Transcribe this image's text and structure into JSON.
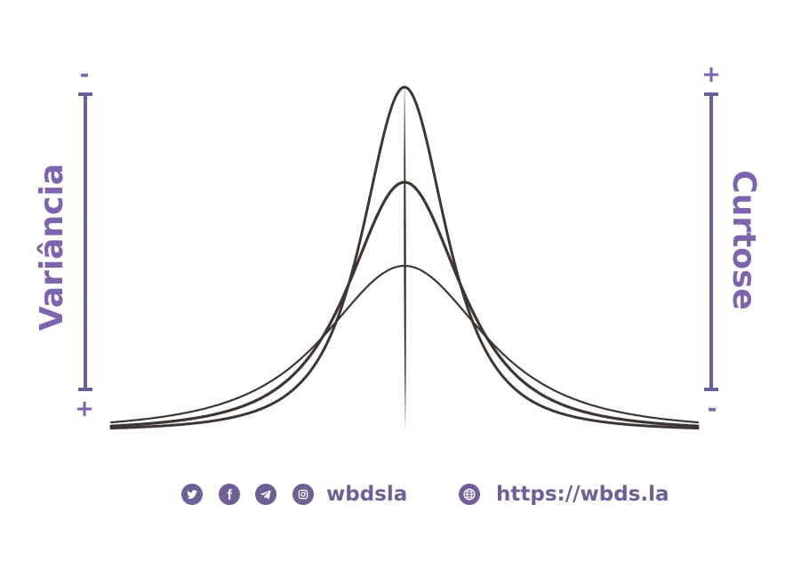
{
  "colors": {
    "accent": "#7e63ad",
    "bar": "#6d5e99",
    "curve": "#3e3633",
    "icon_bg": "#6f5f95"
  },
  "left_scale": {
    "label": "Variância",
    "top_sign": "-",
    "bottom_sign": "+"
  },
  "right_scale": {
    "label": "Curtose",
    "top_sign": "+",
    "bottom_sign": "-"
  },
  "curves": [
    {
      "peak": "highest",
      "role": "high kurtosis / low variance"
    },
    {
      "peak": "middle",
      "role": "medium"
    },
    {
      "peak": "lowest",
      "role": "low kurtosis / high variance"
    }
  ],
  "footer": {
    "social_icons": [
      "twitter-icon",
      "facebook-icon",
      "telegram-icon",
      "instagram-icon"
    ],
    "handle": "wbdsla",
    "website_icon": "globe-icon",
    "url": "https://wbds.la"
  }
}
